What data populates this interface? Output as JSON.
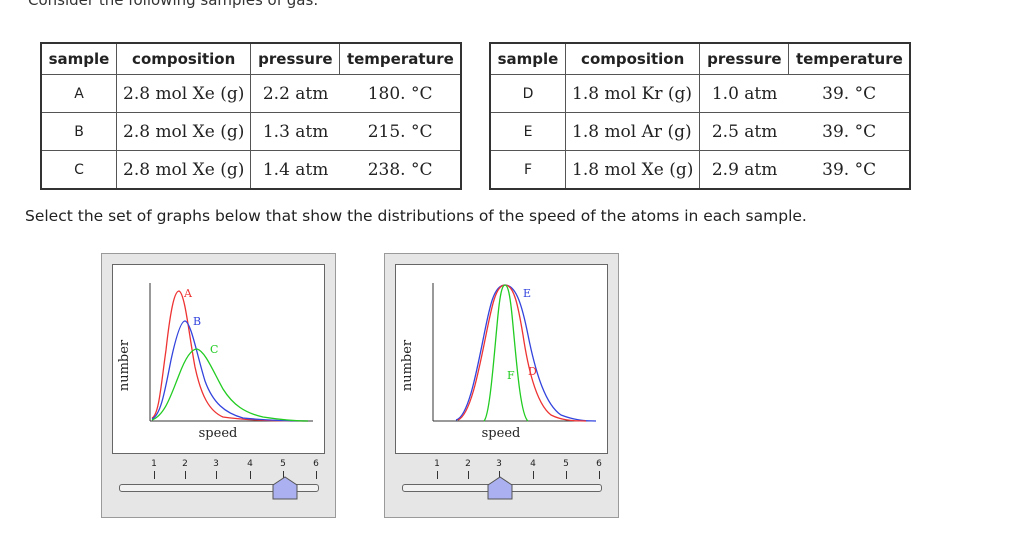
{
  "intro_text": "Consider the following samples of gas:",
  "table_headers": [
    "sample",
    "composition",
    "pressure",
    "temperature"
  ],
  "table_left": [
    {
      "sample": "A",
      "composition": "2.8 mol Xe (g)",
      "pressure": "2.2 atm",
      "temperature": "180. °C"
    },
    {
      "sample": "B",
      "composition": "2.8 mol Xe (g)",
      "pressure": "1.3 atm",
      "temperature": "215. °C"
    },
    {
      "sample": "C",
      "composition": "2.8 mol Xe (g)",
      "pressure": "1.4 atm",
      "temperature": "238. °C"
    }
  ],
  "table_right": [
    {
      "sample": "D",
      "composition": "1.8 mol Kr (g)",
      "pressure": "1.0 atm",
      "temperature": "39. °C"
    },
    {
      "sample": "E",
      "composition": "1.8 mol Ar (g)",
      "pressure": "2.5 atm",
      "temperature": "39. °C"
    },
    {
      "sample": "F",
      "composition": "1.8 mol Xe (g)",
      "pressure": "2.9 atm",
      "temperature": "39. °C"
    }
  ],
  "question": "Select the set of graphs below that show the distributions of the speed of the atoms in each sample.",
  "graph_left": {
    "y_label": "number",
    "x_label": "speed",
    "curve_labels": [
      {
        "text": "A",
        "color": "#ee3333"
      },
      {
        "text": "B",
        "color": "#3344dd"
      },
      {
        "text": "C",
        "color": "#22cc22"
      }
    ],
    "slider_ticks": [
      "1",
      "2",
      "3",
      "4",
      "5",
      "6"
    ],
    "slider_value": 5
  },
  "graph_right": {
    "y_label": "number",
    "x_label": "speed",
    "curve_labels": [
      {
        "text": "E",
        "color": "#3344dd"
      },
      {
        "text": "F",
        "color": "#22cc22"
      },
      {
        "text": "D",
        "color": "#ee3333"
      }
    ],
    "slider_ticks": [
      "1",
      "2",
      "3",
      "4",
      "5",
      "6"
    ],
    "slider_value": 3
  },
  "colors": {
    "red": "#ee3333",
    "blue": "#3344dd",
    "green": "#22cc22",
    "thumb": "#aab0f0"
  }
}
